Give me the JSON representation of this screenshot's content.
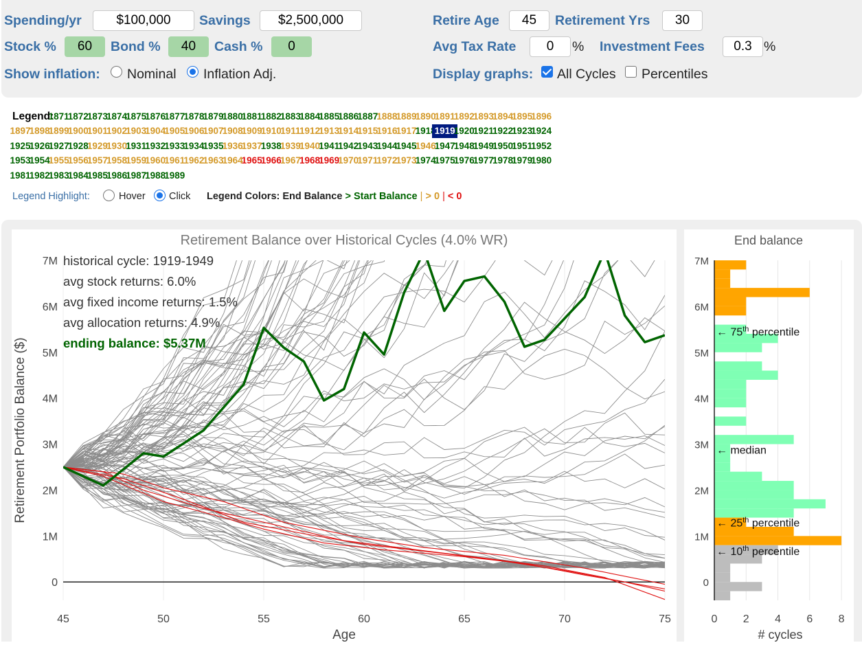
{
  "controls": {
    "spending_label": "Spending/yr",
    "spending_value": "$100,000",
    "savings_label": "Savings",
    "savings_value": "$2,500,000",
    "retire_age_label": "Retire Age",
    "retire_age_value": "45",
    "retirement_yrs_label": "Retirement Yrs",
    "retirement_yrs_value": "30",
    "stock_label": "Stock %",
    "stock_value": "60",
    "bond_label": "Bond %",
    "bond_value": "40",
    "cash_label": "Cash %",
    "cash_value": "0",
    "tax_label": "Avg Tax Rate",
    "tax_value": "0",
    "tax_unit": "%",
    "fees_label": "Investment Fees",
    "fees_value": "0.3",
    "fees_unit": "%",
    "inflation_label": "Show inflation:",
    "nominal_label": "Nominal",
    "inflation_adj_label": "Inflation Adj.",
    "inflation_selected": "Inflation Adj.",
    "display_label": "Display graphs:",
    "all_cycles_label": "All Cycles",
    "all_cycles_checked": true,
    "percentiles_label": "Percentiles",
    "percentiles_checked": false
  },
  "legend": {
    "title": "Legend:",
    "selected_year": "1919",
    "years": [
      {
        "y": "1871",
        "c": "g"
      },
      {
        "y": "1872",
        "c": "g"
      },
      {
        "y": "1873",
        "c": "g"
      },
      {
        "y": "1874",
        "c": "g"
      },
      {
        "y": "1875",
        "c": "g"
      },
      {
        "y": "1876",
        "c": "g"
      },
      {
        "y": "1877",
        "c": "g"
      },
      {
        "y": "1878",
        "c": "g"
      },
      {
        "y": "1879",
        "c": "g"
      },
      {
        "y": "1880",
        "c": "g"
      },
      {
        "y": "1881",
        "c": "g"
      },
      {
        "y": "1882",
        "c": "g"
      },
      {
        "y": "1883",
        "c": "g"
      },
      {
        "y": "1884",
        "c": "g"
      },
      {
        "y": "1885",
        "c": "g"
      },
      {
        "y": "1886",
        "c": "g"
      },
      {
        "y": "1887",
        "c": "g"
      },
      {
        "y": "1888",
        "c": "o"
      },
      {
        "y": "1889",
        "c": "o"
      },
      {
        "y": "1890",
        "c": "o"
      },
      {
        "y": "1891",
        "c": "o"
      },
      {
        "y": "1892",
        "c": "o"
      },
      {
        "y": "1893",
        "c": "o"
      },
      {
        "y": "1894",
        "c": "o"
      },
      {
        "y": "1895",
        "c": "o"
      },
      {
        "y": "1896",
        "c": "o"
      },
      {
        "y": "1897",
        "c": "o"
      },
      {
        "y": "1898",
        "c": "o"
      },
      {
        "y": "1899",
        "c": "o"
      },
      {
        "y": "1900",
        "c": "o"
      },
      {
        "y": "1901",
        "c": "o"
      },
      {
        "y": "1902",
        "c": "o"
      },
      {
        "y": "1903",
        "c": "o"
      },
      {
        "y": "1904",
        "c": "o"
      },
      {
        "y": "1905",
        "c": "o"
      },
      {
        "y": "1906",
        "c": "o"
      },
      {
        "y": "1907",
        "c": "o"
      },
      {
        "y": "1908",
        "c": "o"
      },
      {
        "y": "1909",
        "c": "o"
      },
      {
        "y": "1910",
        "c": "o"
      },
      {
        "y": "1911",
        "c": "o"
      },
      {
        "y": "1912",
        "c": "o"
      },
      {
        "y": "1913",
        "c": "o"
      },
      {
        "y": "1914",
        "c": "o"
      },
      {
        "y": "1915",
        "c": "o"
      },
      {
        "y": "1916",
        "c": "o"
      },
      {
        "y": "1917",
        "c": "o"
      },
      {
        "y": "1918",
        "c": "g"
      },
      {
        "y": "1919",
        "c": "g"
      },
      {
        "y": "1920",
        "c": "g"
      },
      {
        "y": "1921",
        "c": "g"
      },
      {
        "y": "1922",
        "c": "g"
      },
      {
        "y": "1923",
        "c": "g"
      },
      {
        "y": "1924",
        "c": "g"
      },
      {
        "y": "1925",
        "c": "g"
      },
      {
        "y": "1926",
        "c": "g"
      },
      {
        "y": "1927",
        "c": "g"
      },
      {
        "y": "1928",
        "c": "g"
      },
      {
        "y": "1929",
        "c": "o"
      },
      {
        "y": "1930",
        "c": "o"
      },
      {
        "y": "1931",
        "c": "g"
      },
      {
        "y": "1932",
        "c": "g"
      },
      {
        "y": "1933",
        "c": "g"
      },
      {
        "y": "1934",
        "c": "g"
      },
      {
        "y": "1935",
        "c": "g"
      },
      {
        "y": "1936",
        "c": "o"
      },
      {
        "y": "1937",
        "c": "o"
      },
      {
        "y": "1938",
        "c": "g"
      },
      {
        "y": "1939",
        "c": "o"
      },
      {
        "y": "1940",
        "c": "o"
      },
      {
        "y": "1941",
        "c": "g"
      },
      {
        "y": "1942",
        "c": "g"
      },
      {
        "y": "1943",
        "c": "g"
      },
      {
        "y": "1944",
        "c": "g"
      },
      {
        "y": "1945",
        "c": "g"
      },
      {
        "y": "1946",
        "c": "o"
      },
      {
        "y": "1947",
        "c": "g"
      },
      {
        "y": "1948",
        "c": "g"
      },
      {
        "y": "1949",
        "c": "g"
      },
      {
        "y": "1950",
        "c": "g"
      },
      {
        "y": "1951",
        "c": "g"
      },
      {
        "y": "1952",
        "c": "g"
      },
      {
        "y": "1953",
        "c": "g"
      },
      {
        "y": "1954",
        "c": "g"
      },
      {
        "y": "1955",
        "c": "o"
      },
      {
        "y": "1956",
        "c": "o"
      },
      {
        "y": "1957",
        "c": "o"
      },
      {
        "y": "1958",
        "c": "o"
      },
      {
        "y": "1959",
        "c": "o"
      },
      {
        "y": "1960",
        "c": "o"
      },
      {
        "y": "1961",
        "c": "o"
      },
      {
        "y": "1962",
        "c": "o"
      },
      {
        "y": "1963",
        "c": "o"
      },
      {
        "y": "1964",
        "c": "o"
      },
      {
        "y": "1965",
        "c": "r"
      },
      {
        "y": "1966",
        "c": "r"
      },
      {
        "y": "1967",
        "c": "o"
      },
      {
        "y": "1968",
        "c": "r"
      },
      {
        "y": "1969",
        "c": "r"
      },
      {
        "y": "1970",
        "c": "o"
      },
      {
        "y": "1971",
        "c": "o"
      },
      {
        "y": "1972",
        "c": "o"
      },
      {
        "y": "1973",
        "c": "o"
      },
      {
        "y": "1974",
        "c": "g"
      },
      {
        "y": "1975",
        "c": "g"
      },
      {
        "y": "1976",
        "c": "g"
      },
      {
        "y": "1977",
        "c": "g"
      },
      {
        "y": "1978",
        "c": "g"
      },
      {
        "y": "1979",
        "c": "g"
      },
      {
        "y": "1980",
        "c": "g"
      },
      {
        "y": "1981",
        "c": "g"
      },
      {
        "y": "1982",
        "c": "g"
      },
      {
        "y": "1983",
        "c": "g"
      },
      {
        "y": "1984",
        "c": "g"
      },
      {
        "y": "1985",
        "c": "g"
      },
      {
        "y": "1986",
        "c": "g"
      },
      {
        "y": "1987",
        "c": "g"
      },
      {
        "y": "1988",
        "c": "g"
      },
      {
        "y": "1989",
        "c": "g"
      }
    ],
    "highlight_label": "Legend Highlight:",
    "hover_label": "Hover",
    "click_label": "Click",
    "highlight_selected": "Click",
    "colors_label": "Legend Colors: End Balance",
    "colors_gt": ">",
    "colors_start": "Start Balance",
    "colors_sep1": "|",
    "colors_gt0": "> 0",
    "colors_sep2": "|",
    "colors_lt0": "< 0",
    "color_green": "#006400",
    "color_orange": "#d49a2a",
    "color_red": "#e01010"
  },
  "chart_data": [
    {
      "type": "line",
      "title": "Retirement Balance over Historical Cycles (4.0% WR)",
      "xlabel": "Age",
      "ylabel": "Retirement Portfolio Balance ($)",
      "xlim": [
        45,
        75
      ],
      "ylim": [
        -0.4,
        7
      ],
      "xticks": [
        45,
        50,
        55,
        60,
        65,
        70,
        75
      ],
      "yticks": [
        0,
        1,
        2,
        3,
        4,
        5,
        6,
        7
      ],
      "ytick_labels": [
        "0",
        "1M",
        "2M",
        "3M",
        "4M",
        "5M",
        "6M",
        "7M"
      ],
      "annotation": {
        "cycle": "historical cycle: 1919-1949",
        "stock": "avg stock returns: 6.0%",
        "fixed": "avg fixed income returns: 1.5%",
        "alloc": "avg allocation returns: 4.9%",
        "ending": "ending balance: $5.37M"
      },
      "highlight_color": "#006400",
      "other_color": "#8c8c8c",
      "fail_color": "#e01010",
      "highlight_series": {
        "x": [
          45,
          47,
          49,
          50,
          52,
          54,
          55,
          56,
          57,
          58,
          59,
          60,
          61,
          62,
          63,
          64,
          65,
          66,
          67,
          68,
          69,
          71,
          72,
          73,
          74,
          75
        ],
        "y": [
          2.5,
          2.1,
          2.8,
          2.73,
          3.3,
          4.3,
          5.53,
          5.1,
          4.8,
          3.95,
          4.2,
          5.43,
          4.95,
          6.3,
          7.2,
          5.9,
          6.55,
          6.65,
          6.1,
          5.12,
          5.27,
          6.2,
          7.2,
          5.8,
          5.22,
          5.37
        ]
      },
      "fail_series": [
        {
          "x": [
            45,
            47,
            50,
            53,
            55,
            58,
            61,
            65,
            68,
            71,
            75
          ],
          "y": [
            2.5,
            2.3,
            1.75,
            1.4,
            1.15,
            0.85,
            0.7,
            0.55,
            0.4,
            0.15,
            -0.15
          ]
        },
        {
          "x": [
            45,
            48,
            51,
            54,
            57,
            60,
            64,
            67,
            70,
            73,
            75
          ],
          "y": [
            2.5,
            2.25,
            1.8,
            1.3,
            1.05,
            0.82,
            0.62,
            0.45,
            0.25,
            0.0,
            -0.2
          ]
        },
        {
          "x": [
            45,
            47,
            49,
            52,
            56,
            59,
            63,
            66,
            69,
            72,
            75
          ],
          "y": [
            2.5,
            2.4,
            2.0,
            1.6,
            1.2,
            0.9,
            0.68,
            0.52,
            0.35,
            0.1,
            -0.38
          ]
        },
        {
          "x": [
            45,
            48,
            50,
            53,
            56,
            60,
            63,
            67,
            71,
            75
          ],
          "y": [
            2.5,
            2.35,
            2.05,
            1.75,
            1.3,
            0.95,
            0.75,
            0.58,
            0.3,
            -0.05
          ]
        }
      ]
    },
    {
      "type": "bar",
      "orientation": "horizontal",
      "title": "End balance",
      "xlabel": "# cycles",
      "xlim": [
        0,
        8.3
      ],
      "xticks": [
        0,
        2,
        4,
        6,
        8
      ],
      "yticks": [
        0,
        1,
        2,
        3,
        4,
        5,
        6,
        7
      ],
      "ytick_labels": [
        "0",
        "1M",
        "2M",
        "3M",
        "4M",
        "5M",
        "6M",
        "7M"
      ],
      "ylim": [
        -0.4,
        7
      ],
      "bin_width": 0.2,
      "bins": [
        {
          "y": 6.9,
          "count": 2,
          "group": "top"
        },
        {
          "y": 6.7,
          "count": 1,
          "group": "top"
        },
        {
          "y": 6.5,
          "count": 1,
          "group": "top"
        },
        {
          "y": 6.3,
          "count": 6,
          "group": "top"
        },
        {
          "y": 6.1,
          "count": 2,
          "group": "top"
        },
        {
          "y": 5.9,
          "count": 2,
          "group": "top"
        },
        {
          "y": 5.5,
          "count": 2,
          "group": "mid"
        },
        {
          "y": 5.3,
          "count": 4,
          "group": "mid"
        },
        {
          "y": 5.1,
          "count": 3,
          "group": "mid"
        },
        {
          "y": 4.7,
          "count": 3,
          "group": "mid"
        },
        {
          "y": 4.5,
          "count": 4,
          "group": "mid"
        },
        {
          "y": 4.3,
          "count": 2,
          "group": "mid"
        },
        {
          "y": 4.1,
          "count": 2,
          "group": "mid"
        },
        {
          "y": 3.9,
          "count": 2,
          "group": "mid"
        },
        {
          "y": 3.5,
          "count": 2,
          "group": "mid"
        },
        {
          "y": 3.1,
          "count": 5,
          "group": "mid"
        },
        {
          "y": 2.9,
          "count": 1,
          "group": "mid"
        },
        {
          "y": 2.7,
          "count": 1,
          "group": "mid"
        },
        {
          "y": 2.5,
          "count": 1,
          "group": "mid"
        },
        {
          "y": 2.3,
          "count": 3,
          "group": "mid"
        },
        {
          "y": 2.1,
          "count": 5,
          "group": "mid"
        },
        {
          "y": 1.9,
          "count": 5,
          "group": "mid"
        },
        {
          "y": 1.7,
          "count": 7,
          "group": "mid"
        },
        {
          "y": 1.5,
          "count": 5,
          "group": "mid"
        },
        {
          "y": 1.3,
          "count": 2,
          "group": "q1"
        },
        {
          "y": 1.1,
          "count": 5,
          "group": "q1"
        },
        {
          "y": 0.9,
          "count": 8,
          "group": "q1"
        },
        {
          "y": 0.7,
          "count": 4,
          "group": "low"
        },
        {
          "y": 0.5,
          "count": 3,
          "group": "low"
        },
        {
          "y": 0.3,
          "count": 1,
          "group": "low"
        },
        {
          "y": 0.1,
          "count": 1,
          "group": "low"
        },
        {
          "y": -0.1,
          "count": 3,
          "group": "low"
        },
        {
          "y": -0.3,
          "count": 1,
          "group": "low"
        }
      ],
      "group_colors": {
        "top": "#ffa500",
        "mid": "#7fffb4",
        "q1": "#ffa500",
        "low": "#bdbdbd"
      },
      "markers": [
        {
          "y": 5.45,
          "label": "75",
          "sup": "th",
          "suffix": " percentile"
        },
        {
          "y": 2.88,
          "label": "median",
          "sup": "",
          "suffix": ""
        },
        {
          "y": 1.3,
          "label": "25",
          "sup": "th",
          "suffix": " percentile"
        },
        {
          "y": 0.68,
          "label": "10",
          "sup": "th",
          "suffix": " percentile"
        }
      ],
      "arrow": "←"
    }
  ]
}
